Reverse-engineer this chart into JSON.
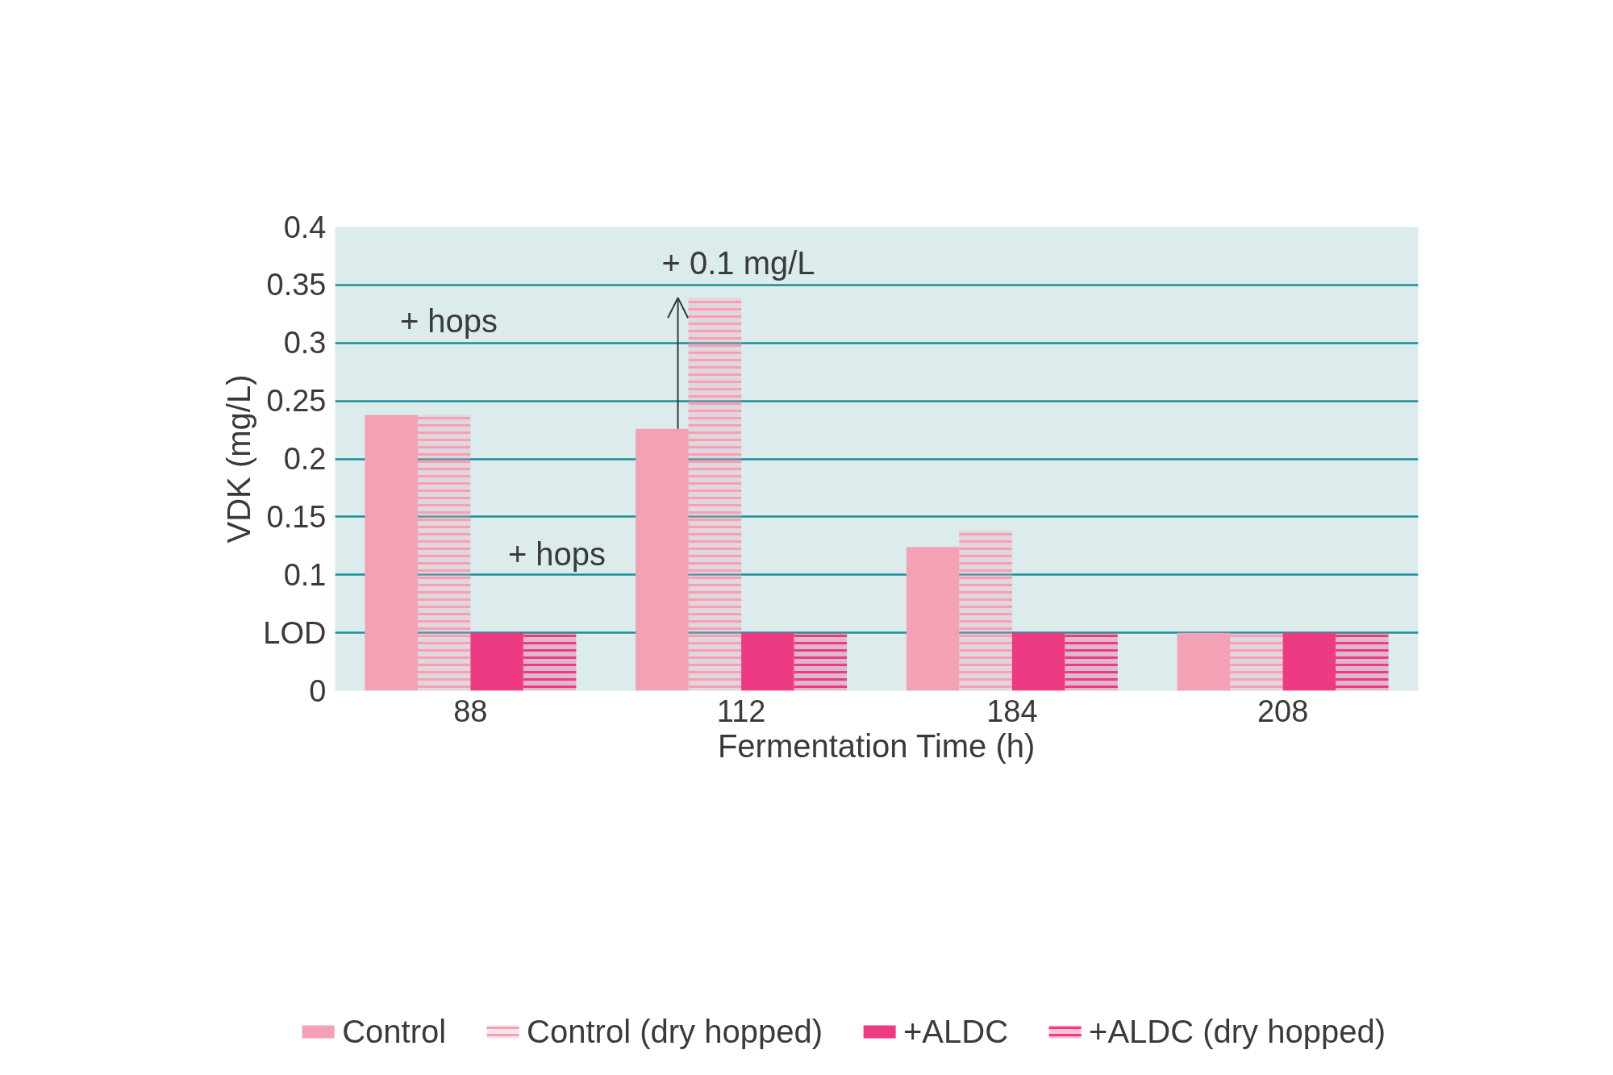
{
  "chart_data": {
    "type": "bar",
    "xlabel": "Fermentation Time (h)",
    "ylabel": "VDK (mg/L)",
    "categories": [
      "88",
      "112",
      "184",
      "208"
    ],
    "series": [
      {
        "name": "Control",
        "color": "#f4a0b5",
        "values": [
          0.238,
          0.226,
          0.124,
          0.05
        ]
      },
      {
        "name": "Control (dry hopped)",
        "color": "#f4a0b5",
        "values": [
          0.238,
          0.339,
          0.138,
          0.05
        ]
      },
      {
        "name": "+ALDC",
        "color": "#ee3a82",
        "values": [
          0.05,
          0.05,
          0.05,
          0.05
        ]
      },
      {
        "name": "+ALDC (dry hopped)",
        "color": "#ee3a82",
        "values": [
          0.05,
          0.05,
          0.05,
          0.05
        ]
      }
    ],
    "ylim": [
      0,
      0.4
    ],
    "yticks": [
      0,
      {
        "value": 0.05,
        "label": "LOD"
      },
      0.1,
      0.15,
      0.2,
      0.25,
      0.3,
      0.35,
      0.4
    ],
    "grid": "y",
    "legend": "bottom",
    "annotations": [
      "+ hops",
      "+ hops",
      {
        "text": "+ 0.1 mg/L",
        "x": "112",
        "y": 0.339
      }
    ]
  }
}
